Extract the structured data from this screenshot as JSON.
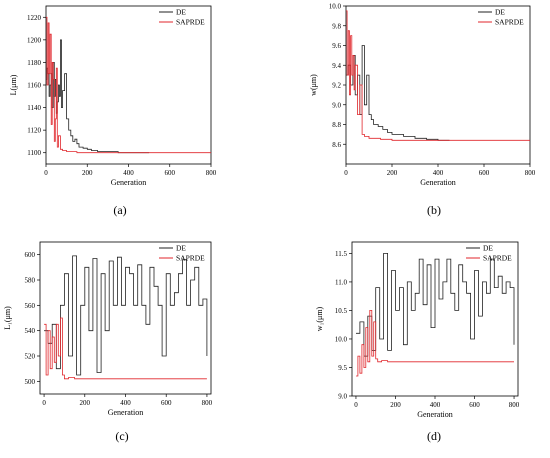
{
  "colors": {
    "DE": "#222222",
    "SAPRDE": "#e0262b"
  },
  "chart_data": [
    {
      "type": "line",
      "panel_label": "(a)",
      "xlabel": "Generation",
      "ylabel": "L(μm)",
      "xlim": [
        0,
        800
      ],
      "ylim": [
        1090,
        1230
      ],
      "xticks": [
        "0",
        "200",
        "400",
        "600",
        "800"
      ],
      "yticks": [
        "1100",
        "1120",
        "1140",
        "1160",
        "1180",
        "1200",
        "1220"
      ],
      "legend": "top-right",
      "series": [
        {
          "name": "DE",
          "x": [
            0,
            5,
            10,
            15,
            20,
            25,
            30,
            35,
            40,
            45,
            50,
            55,
            60,
            65,
            70,
            75,
            80,
            90,
            100,
            110,
            120,
            130,
            140,
            150,
            160,
            180,
            200,
            220,
            250,
            300,
            350,
            400,
            450,
            500
          ],
          "y": [
            1165,
            1175,
            1170,
            1150,
            1160,
            1170,
            1140,
            1180,
            1150,
            1165,
            1135,
            1145,
            1160,
            1150,
            1200,
            1140,
            1155,
            1170,
            1130,
            1120,
            1115,
            1110,
            1112,
            1108,
            1105,
            1104,
            1103,
            1102,
            1101,
            1101,
            1100,
            1100,
            1100,
            1100
          ]
        },
        {
          "name": "SAPRDE",
          "x": [
            0,
            5,
            10,
            15,
            20,
            25,
            30,
            35,
            40,
            45,
            50,
            55,
            60,
            70,
            80,
            100,
            120,
            150,
            200,
            300,
            400,
            500,
            600,
            700,
            800
          ],
          "y": [
            1220,
            1160,
            1215,
            1170,
            1205,
            1125,
            1180,
            1165,
            1110,
            1130,
            1175,
            1105,
            1115,
            1103,
            1102,
            1101,
            1101,
            1100,
            1100,
            1100,
            1100,
            1100,
            1100,
            1100,
            1100
          ]
        }
      ]
    },
    {
      "type": "line",
      "panel_label": "(b)",
      "xlabel": "Generation",
      "ylabel": "w(μm)",
      "xlim": [
        0,
        800
      ],
      "ylim": [
        8.4,
        10.0
      ],
      "xticks": [
        "0",
        "200",
        "400",
        "600",
        "800"
      ],
      "yticks": [
        "8.6",
        "8.8",
        "9.0",
        "9.2",
        "9.4",
        "9.6",
        "9.8",
        "10.0"
      ],
      "legend": "top-right",
      "series": [
        {
          "name": "DE",
          "x": [
            0,
            10,
            20,
            30,
            40,
            50,
            60,
            70,
            80,
            90,
            100,
            110,
            120,
            140,
            160,
            180,
            200,
            250,
            300,
            350,
            400,
            450
          ],
          "y": [
            9.3,
            9.4,
            9.2,
            9.5,
            9.1,
            9.3,
            8.9,
            9.6,
            9.0,
            9.3,
            8.9,
            8.85,
            8.8,
            8.78,
            8.75,
            8.72,
            8.7,
            8.68,
            8.66,
            8.65,
            8.64,
            8.64
          ]
        },
        {
          "name": "SAPRDE",
          "x": [
            0,
            5,
            10,
            15,
            20,
            25,
            30,
            35,
            40,
            50,
            60,
            70,
            80,
            100,
            150,
            200,
            300,
            400,
            500,
            600,
            700,
            800
          ],
          "y": [
            9.95,
            9.3,
            9.75,
            9.1,
            9.7,
            9.3,
            9.5,
            9.15,
            9.4,
            8.9,
            9.2,
            8.7,
            8.68,
            8.66,
            8.65,
            8.64,
            8.64,
            8.64,
            8.64,
            8.64,
            8.64,
            8.64
          ]
        }
      ]
    },
    {
      "type": "line",
      "panel_label": "(c)",
      "xlabel": "Generation",
      "ylabel": "L₁(μm)",
      "xlim": [
        -20,
        820
      ],
      "ylim": [
        490,
        610
      ],
      "xticks": [
        "0",
        "200",
        "400",
        "600",
        "800"
      ],
      "yticks": [
        "500",
        "520",
        "540",
        "560",
        "580",
        "600"
      ],
      "legend": "top-right",
      "series": [
        {
          "name": "DE",
          "x": [
            0,
            20,
            40,
            60,
            80,
            100,
            120,
            140,
            160,
            180,
            200,
            220,
            240,
            260,
            280,
            300,
            320,
            340,
            360,
            380,
            400,
            420,
            440,
            460,
            480,
            500,
            520,
            540,
            560,
            580,
            600,
            620,
            640,
            660,
            680,
            700,
            720,
            740,
            760,
            780,
            800
          ],
          "y": [
            540,
            530,
            545,
            510,
            560,
            585,
            520,
            599,
            505,
            560,
            590,
            540,
            597,
            507,
            585,
            540,
            595,
            560,
            598,
            560,
            590,
            585,
            560,
            592,
            560,
            545,
            590,
            575,
            560,
            520,
            585,
            560,
            570,
            585,
            596,
            560,
            580,
            590,
            560,
            565,
            520
          ]
        },
        {
          "name": "SAPRDE",
          "x": [
            0,
            10,
            20,
            30,
            40,
            50,
            60,
            70,
            80,
            90,
            100,
            120,
            150,
            200,
            300,
            400,
            500,
            600,
            700,
            800
          ],
          "y": [
            545,
            505,
            540,
            510,
            535,
            515,
            545,
            520,
            550,
            505,
            502,
            503,
            502,
            502,
            502,
            502,
            502,
            502,
            502,
            502
          ]
        }
      ]
    },
    {
      "type": "line",
      "panel_label": "(d)",
      "xlabel": "Generation",
      "ylabel": "w₁(μm)",
      "xlim": [
        -20,
        820
      ],
      "ylim": [
        9.0,
        11.7
      ],
      "xticks": [
        "0",
        "200",
        "400",
        "600",
        "800"
      ],
      "yticks": [
        "9.0",
        "9.5",
        "10.0",
        "10.5",
        "11.0",
        "11.5"
      ],
      "legend": "top-right",
      "series": [
        {
          "name": "DE",
          "x": [
            0,
            20,
            40,
            60,
            80,
            100,
            120,
            140,
            160,
            180,
            200,
            220,
            240,
            260,
            280,
            300,
            320,
            340,
            360,
            380,
            400,
            420,
            440,
            460,
            480,
            500,
            520,
            540,
            560,
            580,
            600,
            620,
            640,
            660,
            680,
            700,
            720,
            740,
            760,
            780,
            800
          ],
          "y": [
            10.1,
            10.3,
            9.7,
            10.4,
            9.8,
            10.9,
            10.0,
            11.5,
            9.8,
            11.2,
            10.5,
            10.9,
            9.9,
            11.0,
            10.5,
            10.8,
            11.4,
            10.6,
            11.3,
            10.2,
            11.4,
            10.7,
            11.0,
            11.4,
            10.8,
            10.5,
            11.3,
            11.0,
            10.8,
            10.0,
            11.2,
            10.4,
            11.0,
            10.8,
            11.4,
            10.9,
            11.1,
            10.8,
            11.0,
            10.9,
            9.9
          ]
        },
        {
          "name": "SAPRDE",
          "x": [
            0,
            10,
            20,
            30,
            40,
            50,
            60,
            70,
            80,
            90,
            100,
            110,
            130,
            160,
            200,
            300,
            400,
            500,
            600,
            700,
            800
          ],
          "y": [
            9.35,
            9.7,
            9.4,
            9.9,
            9.5,
            10.2,
            9.6,
            10.5,
            9.7,
            10.3,
            9.65,
            9.6,
            9.62,
            9.6,
            9.6,
            9.6,
            9.6,
            9.6,
            9.6,
            9.6,
            9.6
          ]
        }
      ]
    }
  ]
}
